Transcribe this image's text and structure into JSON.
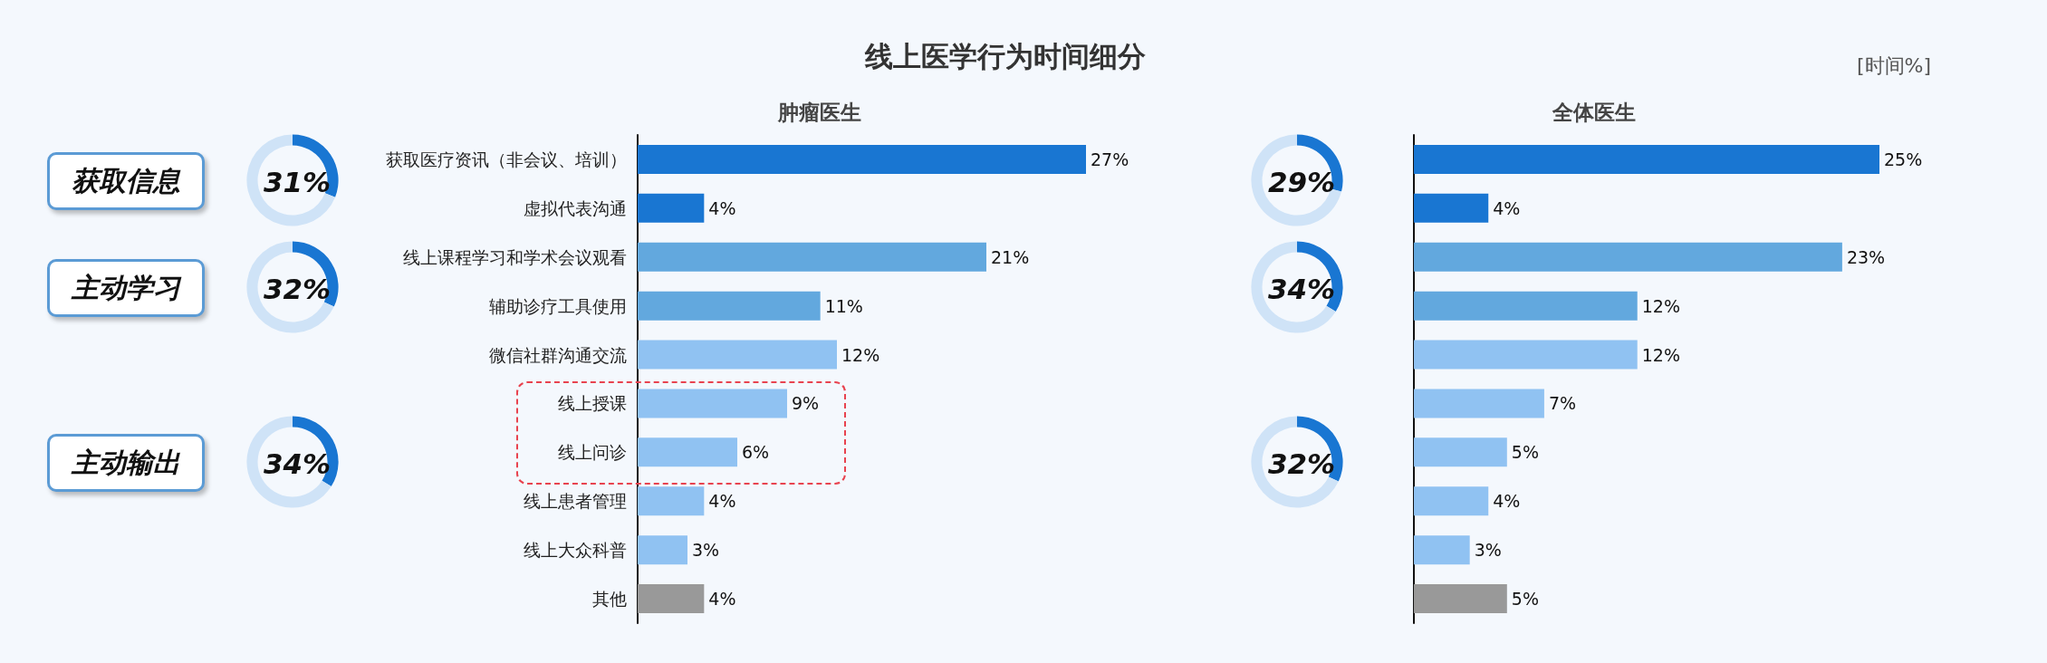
{
  "chart_data": [
    {
      "type": "other",
      "title": "线上医学行为时间细分",
      "annotations": [
        "[时间%]",
        "获取信息",
        "主动学习",
        "主动输出"
      ]
    },
    {
      "type": "donut",
      "categories": [
        null,
        null
      ],
      "values": [
        31,
        69
      ],
      "colors": [
        "#1976d2",
        "#cfe3f7"
      ],
      "value_labels": [
        "31%",
        null
      ]
    },
    {
      "type": "donut",
      "categories": [
        null,
        null
      ],
      "values": [
        32,
        68
      ],
      "colors": [
        "#1976d2",
        "#cfe3f7"
      ],
      "value_labels": [
        "32%",
        null
      ]
    },
    {
      "type": "donut",
      "categories": [
        null,
        null
      ],
      "values": [
        34,
        66
      ],
      "colors": [
        "#1976d2",
        "#cfe3f7"
      ],
      "value_labels": [
        "34%",
        null
      ]
    },
    {
      "type": "bar",
      "title": "肿瘤医生",
      "orientation": "horizontal",
      "categories": [
        "获取医疗资讯（非会议、培训）",
        "虚拟代表沟通",
        "线上课程学习和学术会议观看",
        "辅助诊疗工具使用",
        "微信社群沟通交流",
        "线上授课",
        "线上问诊",
        "线上患者管理",
        "线上大众科普",
        "其他"
      ],
      "values": [
        27,
        4,
        21,
        11,
        12,
        9,
        6,
        4,
        3,
        4
      ],
      "colors": [
        "#1976d2",
        "#1976d2",
        "#62a8de",
        "#62a8de",
        "#90c2f2",
        "#90c2f2",
        "#90c2f2",
        "#90c2f2",
        "#90c2f2",
        "#999999"
      ],
      "value_labels": [
        "27%",
        "4%",
        "21%",
        "11%",
        "12%",
        "9%",
        "6%",
        "4%",
        "3%",
        "4%"
      ]
    },
    {
      "type": "donut",
      "categories": [
        null,
        null
      ],
      "values": [
        29,
        71
      ],
      "colors": [
        "#1976d2",
        "#cfe3f7"
      ],
      "value_labels": [
        "29%",
        null
      ]
    },
    {
      "type": "donut",
      "categories": [
        null,
        null
      ],
      "values": [
        34,
        66
      ],
      "colors": [
        "#1976d2",
        "#cfe3f7"
      ],
      "value_labels": [
        "34%",
        null
      ]
    },
    {
      "type": "donut",
      "categories": [
        null,
        null
      ],
      "values": [
        32,
        68
      ],
      "colors": [
        "#1976d2",
        "#cfe3f7"
      ],
      "value_labels": [
        "32%",
        null
      ]
    },
    {
      "type": "bar",
      "title": "全体医生",
      "orientation": "horizontal",
      "categories": [
        null,
        null,
        null,
        null,
        null,
        null,
        null,
        null,
        null,
        null
      ],
      "values": [
        25,
        4,
        23,
        12,
        12,
        7,
        5,
        4,
        3,
        5
      ],
      "colors": [
        "#1976d2",
        "#1976d2",
        "#62a8de",
        "#62a8de",
        "#90c2f2",
        "#90c2f2",
        "#90c2f2",
        "#90c2f2",
        "#90c2f2",
        "#999999"
      ],
      "value_labels": [
        "25%",
        "4%",
        "23%",
        "12%",
        "12%",
        "7%",
        "5%",
        "4%",
        "3%",
        "5%"
      ]
    }
  ]
}
